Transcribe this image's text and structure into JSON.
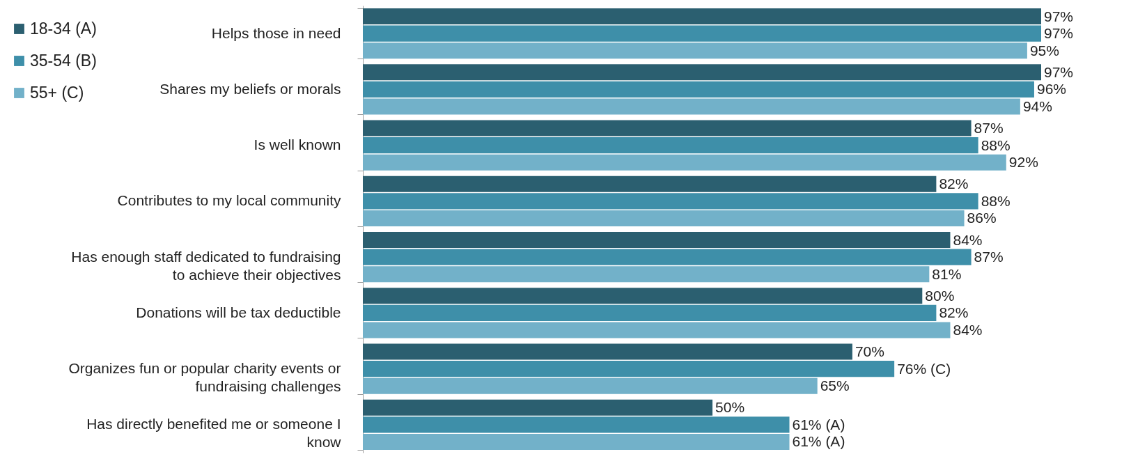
{
  "chart_data": {
    "type": "bar",
    "orientation": "horizontal",
    "legend": "top left",
    "categories": [
      "Helps those in need",
      "Shares my beliefs or morals",
      "Is well known",
      "Contributes to my local community",
      "Has enough staff dedicated to fundraising to achieve their objectives",
      "Donations will be tax deductible",
      "Organizes fun or popular charity events or fundraising challenges",
      "Has directly benefited me or someone I know"
    ],
    "series": [
      {
        "name": "18-34 (A)",
        "color": "#2b5f70",
        "values": [
          97,
          97,
          87,
          82,
          84,
          80,
          70,
          50
        ],
        "value_labels": [
          "97%",
          "97%",
          "87%",
          "82%",
          "84%",
          "80%",
          "70%",
          "50%"
        ]
      },
      {
        "name": "35-54 (B)",
        "color": "#3e8fa9",
        "values": [
          97,
          96,
          88,
          88,
          87,
          82,
          76,
          61
        ],
        "value_labels": [
          "97%",
          "96%",
          "88%",
          "88%",
          "87%",
          "82%",
          "76% (C)",
          "61% (A)"
        ]
      },
      {
        "name": "55+ (C)",
        "color": "#72b1c9",
        "values": [
          95,
          94,
          92,
          86,
          81,
          84,
          65,
          61
        ],
        "value_labels": [
          "95%",
          "94%",
          "92%",
          "86%",
          "81%",
          "84%",
          "65%",
          "61% (A)"
        ]
      }
    ]
  }
}
